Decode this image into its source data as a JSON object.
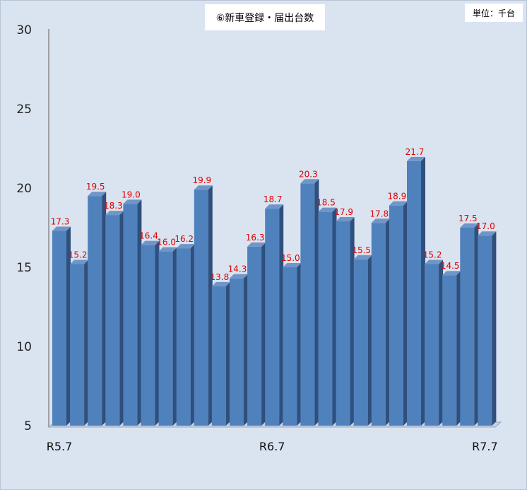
{
  "chart_data": {
    "type": "bar",
    "title": "⑥新車登録・届出台数",
    "unit_label": "単位：千台",
    "categories": [
      "R5.7",
      "",
      "",
      "",
      "",
      "",
      "",
      "",
      "",
      "",
      "",
      "",
      "R6.7",
      "",
      "",
      "",
      "",
      "",
      "",
      "",
      "",
      "",
      "",
      "",
      "R7.7"
    ],
    "values": [
      17.3,
      15.2,
      19.5,
      18.3,
      19.0,
      16.4,
      16.0,
      16.2,
      19.9,
      13.8,
      14.3,
      16.3,
      18.7,
      15.0,
      20.3,
      18.5,
      17.9,
      15.5,
      17.8,
      18.9,
      21.7,
      15.2,
      14.5,
      17.5,
      17.0
    ],
    "data_labels": [
      "17.3",
      "15.2",
      "19.5",
      "18.3",
      "19.0",
      "16.4",
      "16.0",
      "16.2",
      "19.9",
      "13.8",
      "14.3",
      "16.3",
      "18.7",
      "15.0",
      "20.3",
      "18.5",
      "17.9",
      "15.5",
      "17.8",
      "18.9",
      "21.7",
      "15.2",
      "14.5",
      "17.5",
      "17.0"
    ],
    "ylim": [
      5,
      30
    ],
    "yticks": [
      "5",
      "10",
      "15",
      "20",
      "25",
      "30"
    ],
    "xlabel": "",
    "ylabel": "",
    "grid": false,
    "colors": {
      "bar_front": "#4f81bd",
      "bar_side": "#2f4f7c",
      "bar_top": "#7096c8",
      "data_label": "#e00000",
      "background": "#dae3f0"
    }
  }
}
